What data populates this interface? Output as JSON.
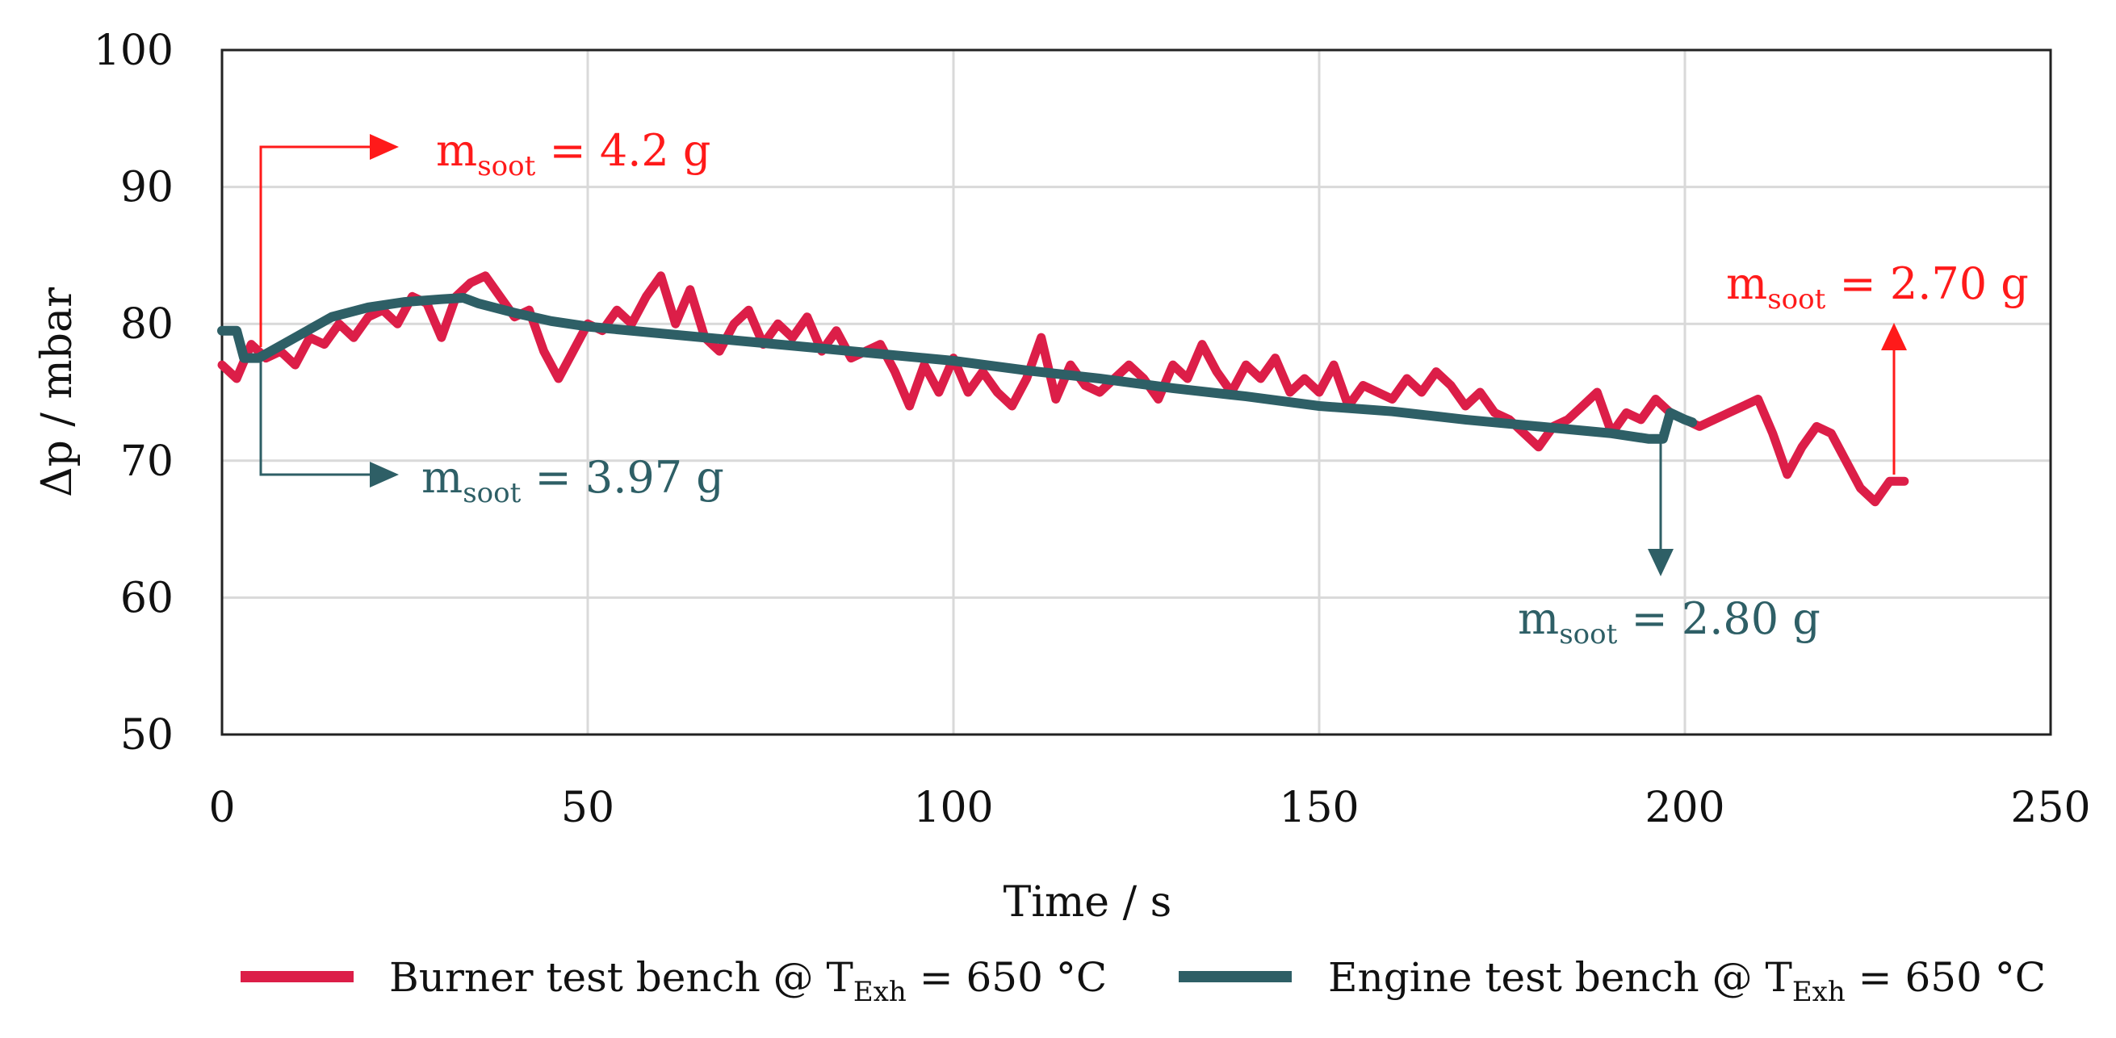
{
  "chart_data": {
    "type": "line",
    "xlabel": "Time / s",
    "ylabel": "Δp / mbar",
    "xlim": [
      0,
      250
    ],
    "ylim": [
      50,
      100
    ],
    "x_ticks": [
      0,
      50,
      100,
      150,
      200,
      250
    ],
    "y_ticks": [
      50,
      60,
      70,
      80,
      90,
      100
    ],
    "grid": true,
    "legend_position": "bottom",
    "series": [
      {
        "name": "Burner test bench @ T_Exh = 650 °C",
        "legend_main": "Burner test bench @ T",
        "legend_sub": "Exh",
        "legend_tail": " = 650 °C",
        "color": "#dc1e48",
        "x": [
          0,
          2,
          4,
          6,
          8,
          10,
          12,
          14,
          16,
          18,
          20,
          22,
          24,
          26,
          28,
          30,
          32,
          34,
          36,
          38,
          40,
          42,
          44,
          46,
          48,
          50,
          52,
          54,
          56,
          58,
          60,
          62,
          64,
          66,
          68,
          70,
          72,
          74,
          76,
          78,
          80,
          82,
          84,
          86,
          88,
          90,
          92,
          94,
          96,
          98,
          100,
          102,
          104,
          106,
          108,
          110,
          112,
          114,
          116,
          118,
          120,
          122,
          124,
          126,
          128,
          130,
          132,
          134,
          136,
          138,
          140,
          142,
          144,
          146,
          148,
          150,
          152,
          154,
          156,
          158,
          160,
          162,
          164,
          166,
          168,
          170,
          172,
          174,
          176,
          178,
          180,
          182,
          184,
          186,
          188,
          190,
          192,
          194,
          196,
          198,
          200,
          202,
          204,
          206,
          208,
          210,
          212,
          214,
          216,
          218,
          220,
          222,
          224,
          226,
          228,
          230
        ],
        "y": [
          77,
          76,
          78.5,
          77.5,
          78,
          77,
          79,
          78.5,
          80,
          79,
          80.5,
          81,
          80,
          82,
          81.5,
          79,
          82,
          83,
          83.5,
          82,
          80.5,
          81,
          78,
          76,
          78,
          80,
          79.5,
          81,
          80,
          82,
          83.5,
          80,
          82.5,
          79,
          78,
          80,
          81,
          78.5,
          80,
          79,
          80.5,
          78,
          79.5,
          77.5,
          78,
          78.5,
          76.5,
          74,
          77,
          75,
          77.5,
          75,
          76.5,
          75,
          74,
          76,
          79,
          74.5,
          77,
          75.5,
          75,
          76,
          77,
          76,
          74.5,
          77,
          76,
          78.5,
          76.5,
          75,
          77,
          76,
          77.5,
          75,
          76,
          75,
          77,
          74,
          75.5,
          75,
          74.5,
          76,
          75,
          76.5,
          75.5,
          74,
          75,
          73.5,
          73,
          72,
          71,
          72.5,
          73,
          74,
          75,
          72,
          73.5,
          73,
          74.5,
          73.5,
          73,
          72.5,
          73,
          73.5,
          74,
          74.5,
          72,
          69,
          71,
          72.5,
          72,
          70,
          68,
          67,
          68.5,
          68.5
        ]
      },
      {
        "name": "Engine test bench @ T_Exh = 650 °C",
        "legend_main": "Engine test bench @ T",
        "legend_sub": "Exh",
        "legend_tail": " = 650 °C",
        "color": "#2e5f66",
        "x": [
          0,
          2,
          3,
          5,
          10,
          15,
          20,
          25,
          30,
          33,
          35,
          40,
          45,
          50,
          60,
          70,
          80,
          90,
          100,
          110,
          120,
          130,
          140,
          150,
          160,
          170,
          180,
          190,
          195,
          197,
          198,
          200,
          201
        ],
        "y": [
          79.5,
          79.5,
          77.5,
          77.5,
          79,
          80.5,
          81.2,
          81.6,
          81.8,
          81.9,
          81.5,
          80.8,
          80.2,
          79.8,
          79.3,
          78.8,
          78.3,
          77.8,
          77.3,
          76.6,
          76,
          75.3,
          74.7,
          74,
          73.6,
          73,
          72.5,
          72,
          71.6,
          71.6,
          73.5,
          73,
          72.8
        ]
      }
    ],
    "annotations": [
      {
        "text_main": "m",
        "text_sub": "soot",
        "text_tail": " = 4.2 g",
        "color": "#ff1a1a"
      },
      {
        "text_main": "m",
        "text_sub": "soot",
        "text_tail": " = 3.97 g",
        "color": "#2e5f66"
      },
      {
        "text_main": "m",
        "text_sub": "soot",
        "text_tail": " = 2.70 g",
        "color": "#ff1a1a"
      },
      {
        "text_main": "m",
        "text_sub": "soot",
        "text_tail": " = 2.80 g",
        "color": "#2e5f66"
      }
    ]
  }
}
